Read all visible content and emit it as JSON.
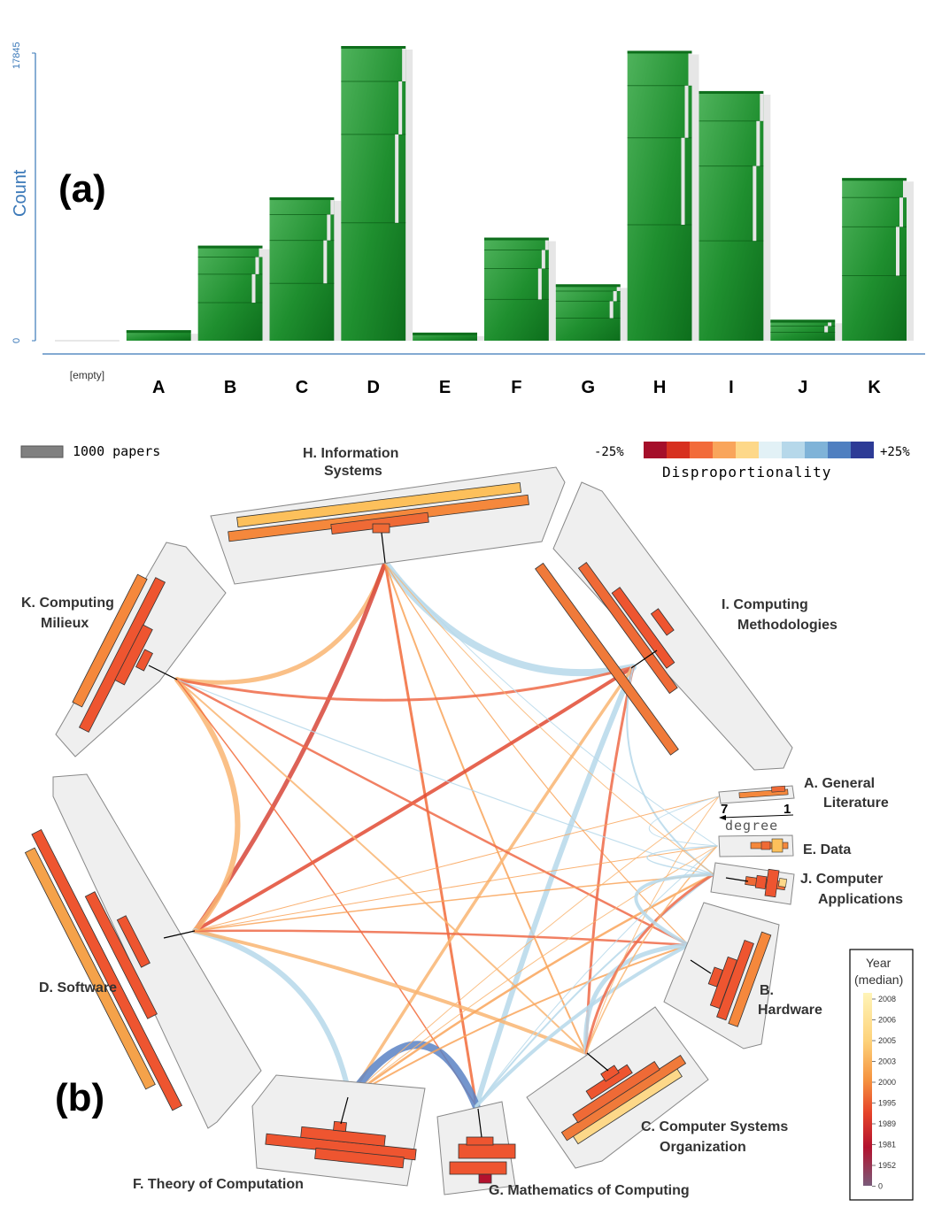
{
  "panel_a": {
    "label": "(a)",
    "chart_data": {
      "type": "bar",
      "ylabel": "Count",
      "ylim": [
        0,
        17845
      ],
      "yticks": [
        "0",
        "17845"
      ],
      "categories": [
        "[empty]",
        "A",
        "B",
        "C",
        "D",
        "E",
        "F",
        "G",
        "H",
        "I",
        "J",
        "K"
      ],
      "values": [
        0,
        650,
        5900,
        8900,
        18300,
        500,
        6400,
        3500,
        18000,
        15500,
        1300,
        10100
      ],
      "colors": {
        "bar": "#1b8a2a",
        "axis": "#3a78b8"
      }
    }
  },
  "panel_b": {
    "label": "(b)",
    "scale_label": "1000 papers",
    "disproportionality": {
      "label": "Disproportionality",
      "min_label": "-25%",
      "max_label": "+25%",
      "colors": [
        "#a50f2a",
        "#d7301f",
        "#f26b3a",
        "#f9a55b",
        "#fdd889",
        "#e2f1f6",
        "#b6d8ea",
        "#7fb3d8",
        "#4f7fc0",
        "#2d3b96"
      ]
    },
    "year_legend": {
      "title_line1": "Year",
      "title_line2": "(median)",
      "ticks": [
        "2008",
        "2006",
        "2005",
        "2003",
        "2000",
        "1995",
        "1989",
        "1981",
        "1952",
        "0"
      ]
    },
    "degree": {
      "label": "degree",
      "min": "1",
      "max": "7"
    },
    "nodes": [
      {
        "id": "H",
        "line1": "H. Information",
        "line2": "Systems"
      },
      {
        "id": "I",
        "line1": "I. Computing",
        "line2": "Methodologies"
      },
      {
        "id": "A",
        "line1": "A. General",
        "line2": "Literature"
      },
      {
        "id": "E",
        "line1": "E. Data",
        "line2": ""
      },
      {
        "id": "J",
        "line1": "J. Computer",
        "line2": "Applications"
      },
      {
        "id": "B",
        "line1": "B.",
        "line2": "Hardware"
      },
      {
        "id": "C",
        "line1": "C. Computer Systems",
        "line2": "Organization"
      },
      {
        "id": "G",
        "line1": "G. Mathematics of Computing",
        "line2": ""
      },
      {
        "id": "F",
        "line1": "F. Theory of Computation",
        "line2": ""
      },
      {
        "id": "D",
        "line1": "D. Software",
        "line2": ""
      },
      {
        "id": "K",
        "line1": "K. Computing",
        "line2": "Milieux"
      }
    ]
  }
}
